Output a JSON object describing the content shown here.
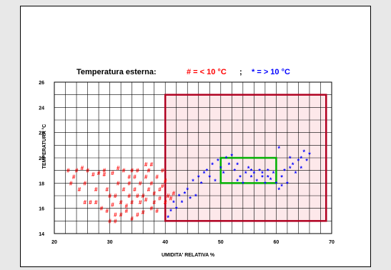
{
  "chart_data": {
    "type": "scatter",
    "title": "Temperatura esterna:",
    "xlabel": "UMIDITA' RELATIVA %",
    "ylabel": "TEMPERATURA  °C",
    "xlim": [
      20,
      70
    ],
    "ylim": [
      14,
      26
    ],
    "x_ticks": [
      20,
      30,
      40,
      50,
      60,
      70
    ],
    "y_ticks": [
      14,
      16,
      18,
      20,
      22,
      24,
      26
    ],
    "grid": true,
    "colors": {
      "below": "#ff0000",
      "above": "#0000ff",
      "comfort": "#00b000",
      "zone_border": "#b00020",
      "zone_fill": "#fde8ea"
    },
    "legend": [
      {
        "text": "# = < 10 °C",
        "marker": "#",
        "color": "#ff0000"
      },
      {
        "text": ";",
        "color": "#000000"
      },
      {
        "text": "* = > 10 °C",
        "marker": "*",
        "color": "#0000ff"
      }
    ],
    "regions": {
      "shaded": {
        "x": [
          40,
          69
        ],
        "y": [
          15,
          25
        ]
      },
      "comfort": {
        "x": [
          50,
          60
        ],
        "y": [
          18,
          20
        ]
      }
    },
    "series": [
      {
        "name": "# = < 10 °C",
        "marker": "#",
        "color": "#ff0000",
        "points": [
          [
            22.5,
            19.0
          ],
          [
            23.0,
            18.0
          ],
          [
            23.5,
            18.5
          ],
          [
            24.0,
            19.0
          ],
          [
            24.5,
            17.5
          ],
          [
            25.0,
            19.2
          ],
          [
            25.5,
            16.5
          ],
          [
            25.5,
            18.0
          ],
          [
            26.0,
            19.0
          ],
          [
            26.5,
            16.5
          ],
          [
            27.0,
            18.7
          ],
          [
            27.5,
            17.5
          ],
          [
            28.0,
            18.8
          ],
          [
            28.5,
            16.0
          ],
          [
            29.0,
            18.7
          ],
          [
            29.5,
            17.5
          ],
          [
            29.5,
            15.8
          ],
          [
            30.0,
            17.0
          ],
          [
            30.0,
            15.0
          ],
          [
            30.5,
            18.8
          ],
          [
            30.5,
            16.3
          ],
          [
            31.0,
            17.0
          ],
          [
            31.0,
            15.5
          ],
          [
            31.5,
            19.2
          ],
          [
            31.5,
            18.0
          ],
          [
            32.0,
            16.5
          ],
          [
            32.0,
            15.5
          ],
          [
            32.5,
            17.5
          ],
          [
            32.5,
            19.0
          ],
          [
            33.0,
            16.2
          ],
          [
            33.0,
            15.8
          ],
          [
            33.5,
            18.5
          ],
          [
            33.5,
            17.0
          ],
          [
            34.0,
            19.0
          ],
          [
            34.0,
            16.5
          ],
          [
            34.5,
            17.5
          ],
          [
            34.5,
            18.5
          ],
          [
            35.0,
            17.0
          ],
          [
            35.0,
            15.5
          ],
          [
            35.0,
            19.0
          ],
          [
            35.5,
            16.5
          ],
          [
            35.5,
            18.0
          ],
          [
            36.0,
            17.0
          ],
          [
            36.0,
            15.7
          ],
          [
            36.5,
            18.5
          ],
          [
            36.5,
            16.7
          ],
          [
            37.0,
            19.0
          ],
          [
            37.0,
            17.5
          ],
          [
            37.5,
            16.0
          ],
          [
            37.5,
            18.0
          ],
          [
            38.0,
            16.5
          ],
          [
            38.0,
            17.2
          ],
          [
            38.5,
            18.5
          ],
          [
            39.0,
            17.5
          ],
          [
            39.0,
            16.8
          ],
          [
            39.5,
            19.0
          ],
          [
            39.5,
            17.8
          ],
          [
            40.0,
            18.2
          ],
          [
            40.0,
            16.5
          ],
          [
            40.5,
            17.0
          ],
          [
            41.0,
            16.8
          ],
          [
            41.5,
            17.2
          ],
          [
            31.0,
            15.0
          ],
          [
            33.5,
            18.0
          ],
          [
            36.5,
            19.5
          ],
          [
            38.5,
            15.8
          ],
          [
            27.5,
            16.5
          ],
          [
            29.0,
            19.0
          ],
          [
            34.0,
            15.2
          ],
          [
            37.5,
            19.5
          ]
        ]
      },
      {
        "name": "* = > 10 °C",
        "marker": "*",
        "color": "#0000ff",
        "points": [
          [
            40.5,
            15.3
          ],
          [
            41.0,
            15.8
          ],
          [
            41.5,
            16.5
          ],
          [
            42.0,
            16.0
          ],
          [
            42.5,
            17.0
          ],
          [
            43.0,
            16.5
          ],
          [
            43.5,
            17.2
          ],
          [
            44.0,
            17.5
          ],
          [
            44.5,
            16.8
          ],
          [
            45.0,
            18.2
          ],
          [
            45.5,
            17.0
          ],
          [
            46.0,
            18.5
          ],
          [
            46.5,
            18.0
          ],
          [
            47.0,
            18.8
          ],
          [
            47.5,
            19.0
          ],
          [
            48.0,
            18.5
          ],
          [
            48.5,
            19.5
          ],
          [
            49.0,
            18.2
          ],
          [
            49.5,
            19.8
          ],
          [
            50.0,
            19.2
          ],
          [
            50.5,
            18.8
          ],
          [
            51.0,
            20.0
          ],
          [
            51.5,
            19.5
          ],
          [
            52.0,
            20.2
          ],
          [
            52.5,
            19.0
          ],
          [
            53.0,
            19.5
          ],
          [
            53.5,
            18.5
          ],
          [
            54.0,
            18.0
          ],
          [
            54.5,
            18.8
          ],
          [
            55.0,
            19.2
          ],
          [
            55.5,
            18.5
          ],
          [
            56.0,
            18.8
          ],
          [
            56.5,
            18.2
          ],
          [
            57.0,
            19.0
          ],
          [
            57.5,
            18.5
          ],
          [
            58.0,
            18.0
          ],
          [
            58.5,
            19.0
          ],
          [
            59.0,
            18.3
          ],
          [
            59.5,
            18.8
          ],
          [
            60.0,
            18.0
          ],
          [
            60.5,
            17.5
          ],
          [
            61.0,
            18.5
          ],
          [
            61.5,
            19.0
          ],
          [
            62.0,
            18.0
          ],
          [
            62.5,
            19.2
          ],
          [
            63.0,
            19.5
          ],
          [
            63.5,
            18.8
          ],
          [
            64.0,
            19.8
          ],
          [
            64.5,
            20.0
          ],
          [
            65.0,
            20.5
          ],
          [
            65.5,
            19.8
          ],
          [
            66.0,
            20.3
          ],
          [
            61.0,
            17.8
          ],
          [
            62.5,
            20.0
          ],
          [
            60.5,
            20.8
          ],
          [
            57.5,
            18.8
          ],
          [
            55.5,
            19.0
          ],
          [
            53.0,
            18.2
          ],
          [
            58.5,
            18.5
          ],
          [
            64.5,
            19.2
          ]
        ]
      }
    ]
  }
}
